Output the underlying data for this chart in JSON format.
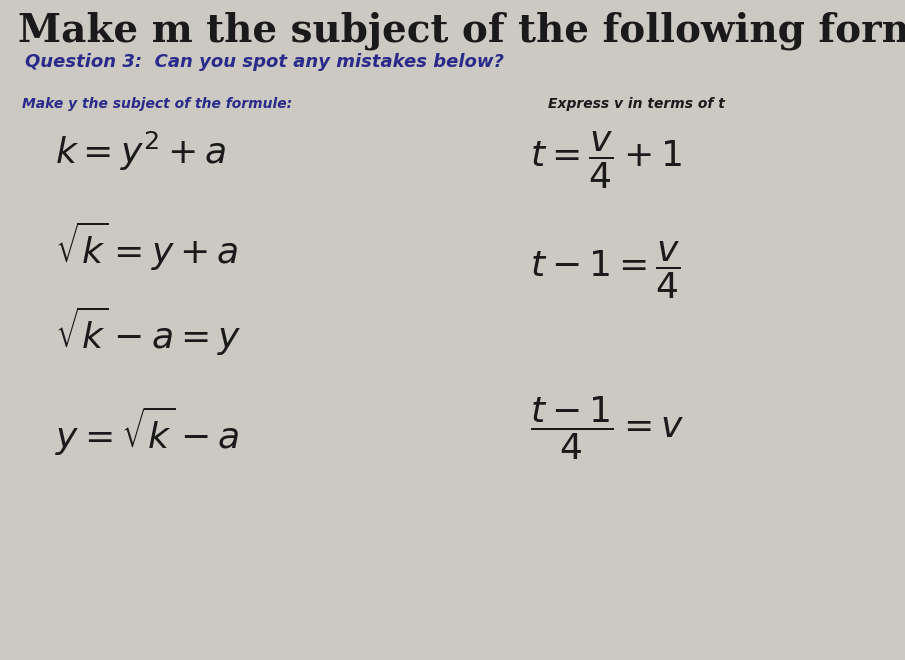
{
  "title": "Make m the subject of the following formulae",
  "question3": "Question 3:  Can you spot any mistakes below?",
  "left_subtitle": "Make y the subject of the formule:",
  "right_subtitle": "Express v in terms of t",
  "bg_color": "#ccc8c2",
  "title_color": "#1a1a1a",
  "q3_color": "#2a2a8a",
  "subtitle_color": "#2a2a8a",
  "math_color": "#1a1a1a",
  "title_fontsize": 28,
  "q3_fontsize": 13,
  "subtitle_fontsize": 10,
  "math_fontsize": 26
}
